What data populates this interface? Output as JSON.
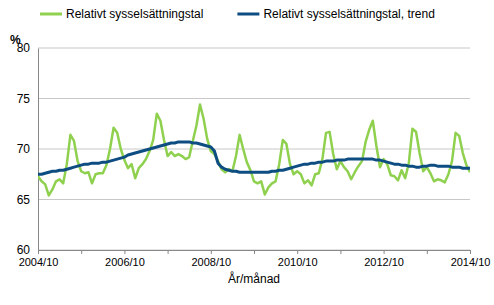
{
  "chart_data": {
    "type": "line",
    "y_label": "%",
    "x_label": "År/månad",
    "categories": [
      "2004/10",
      null,
      null,
      null,
      null,
      null,
      null,
      null,
      null,
      null,
      null,
      null,
      null,
      null,
      null,
      null,
      null,
      null,
      null,
      null,
      null,
      null,
      null,
      null,
      "2006/10",
      null,
      null,
      null,
      null,
      null,
      null,
      null,
      null,
      null,
      null,
      null,
      null,
      null,
      null,
      null,
      null,
      null,
      null,
      null,
      null,
      null,
      null,
      null,
      "2008/10",
      null,
      null,
      null,
      null,
      null,
      null,
      null,
      null,
      null,
      null,
      null,
      null,
      null,
      null,
      null,
      null,
      null,
      null,
      null,
      null,
      null,
      null,
      null,
      "2010/10",
      null,
      null,
      null,
      null,
      null,
      null,
      null,
      null,
      null,
      null,
      null,
      null,
      null,
      null,
      null,
      null,
      null,
      null,
      null,
      null,
      null,
      null,
      null,
      "2012/10",
      null,
      null,
      null,
      null,
      null,
      null,
      null,
      null,
      null,
      null,
      null,
      null,
      null,
      null,
      null,
      null,
      null,
      null,
      null,
      null,
      null,
      null,
      null,
      "2014/10"
    ],
    "series": [
      {
        "name": "Relativt sysselsättningstal",
        "color": "#8fd14f",
        "values": [
          67.3,
          66.8,
          66.5,
          65.4,
          66.0,
          66.8,
          67.0,
          66.6,
          68.5,
          71.4,
          70.8,
          68.8,
          67.8,
          67.6,
          67.7,
          66.6,
          67.5,
          67.6,
          67.6,
          68.4,
          70.0,
          72.1,
          71.6,
          70.0,
          68.9,
          68.1,
          68.5,
          67.1,
          68.1,
          68.5,
          69.0,
          69.8,
          70.9,
          73.5,
          72.8,
          70.9,
          69.3,
          69.7,
          69.3,
          69.5,
          69.3,
          69.0,
          69.2,
          70.8,
          72.3,
          74.4,
          73.0,
          71.0,
          69.8,
          69.5,
          68.8,
          68.0,
          67.7,
          68.0,
          67.8,
          69.3,
          71.4,
          70.0,
          68.7,
          67.9,
          66.8,
          66.6,
          66.8,
          65.5,
          66.2,
          66.6,
          66.8,
          68.5,
          70.9,
          70.5,
          68.5,
          67.5,
          67.8,
          67.5,
          66.6,
          66.9,
          66.4,
          67.5,
          67.6,
          69.0,
          71.6,
          71.7,
          69.5,
          68.0,
          68.8,
          68.2,
          67.8,
          67.0,
          67.7,
          68.3,
          68.8,
          70.7,
          71.9,
          72.8,
          70.3,
          68.2,
          69.0,
          68.5,
          67.4,
          67.3,
          66.9,
          67.9,
          67.1,
          68.6,
          72.0,
          71.7,
          69.6,
          67.8,
          68.2,
          67.6,
          66.8,
          67.0,
          66.9,
          66.7,
          67.5,
          68.8,
          71.6,
          71.3,
          69.6,
          68.4,
          67.7
        ]
      },
      {
        "name": "Relativt sysselsättningstal, trend",
        "color": "#0e4d82",
        "values": [
          67.5,
          67.5,
          67.6,
          67.7,
          67.8,
          67.8,
          67.9,
          67.9,
          68.0,
          68.1,
          68.2,
          68.3,
          68.4,
          68.5,
          68.5,
          68.6,
          68.6,
          68.6,
          68.7,
          68.7,
          68.8,
          68.9,
          69.0,
          69.1,
          69.2,
          69.4,
          69.5,
          69.6,
          69.7,
          69.8,
          69.9,
          70.0,
          70.1,
          70.2,
          70.3,
          70.4,
          70.5,
          70.6,
          70.6,
          70.7,
          70.7,
          70.7,
          70.7,
          70.6,
          70.6,
          70.5,
          70.4,
          70.3,
          70.2,
          69.8,
          68.6,
          68.2,
          68.0,
          67.9,
          67.8,
          67.8,
          67.7,
          67.7,
          67.7,
          67.7,
          67.7,
          67.7,
          67.7,
          67.7,
          67.7,
          67.8,
          67.8,
          67.9,
          67.9,
          68.0,
          68.1,
          68.2,
          68.3,
          68.4,
          68.5,
          68.5,
          68.6,
          68.6,
          68.7,
          68.7,
          68.8,
          68.8,
          68.8,
          68.9,
          68.9,
          68.9,
          69.0,
          69.0,
          69.0,
          69.0,
          69.0,
          69.0,
          69.0,
          69.0,
          68.9,
          68.9,
          68.8,
          68.7,
          68.6,
          68.5,
          68.5,
          68.4,
          68.4,
          68.3,
          68.3,
          68.2,
          68.2,
          68.3,
          68.3,
          68.4,
          68.4,
          68.3,
          68.3,
          68.3,
          68.3,
          68.2,
          68.2,
          68.2,
          68.1,
          68.1,
          68.1
        ]
      }
    ],
    "ylim": [
      60,
      80
    ],
    "yticks": [
      60,
      65,
      70,
      75,
      80
    ],
    "grid": true,
    "legend": "top"
  }
}
